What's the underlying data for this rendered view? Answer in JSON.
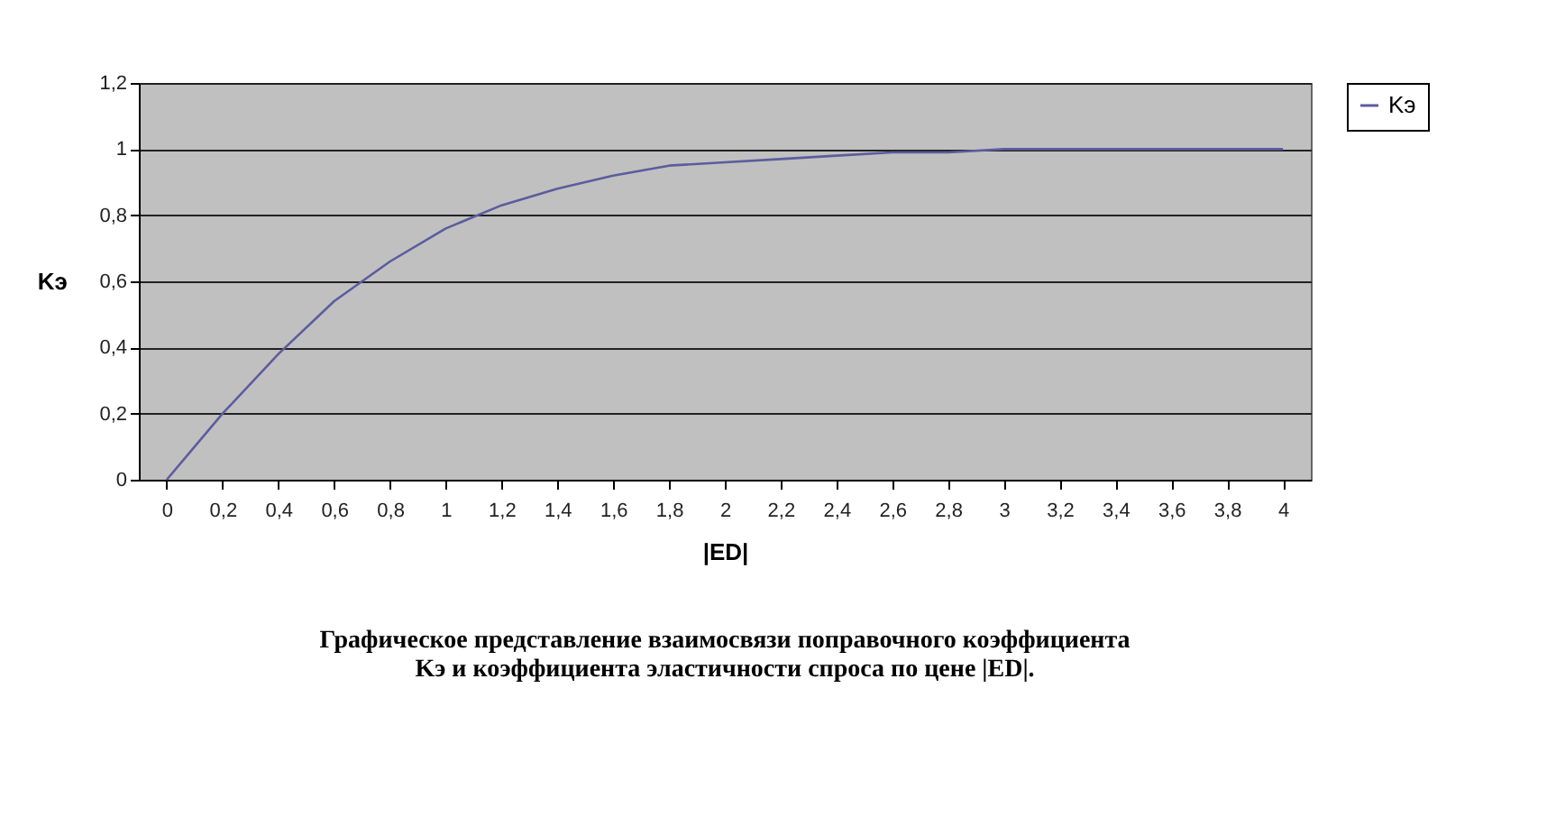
{
  "chart_data": {
    "type": "line",
    "title": "Графическое представление взаимосвязи поправочного коэффициента Kэ и коэффициента эластичности спроса по цене |ED|.",
    "xlabel": "|ED|",
    "ylabel": "Kэ",
    "categories": [
      "0",
      "0,2",
      "0,4",
      "0,6",
      "0,8",
      "1",
      "1,2",
      "1,4",
      "1,6",
      "1,8",
      "2",
      "2,2",
      "2,4",
      "2,6",
      "2,8",
      "3",
      "3,2",
      "3,4",
      "3,6",
      "3,8",
      "4"
    ],
    "series": [
      {
        "name": "Kэ",
        "color": "#5c5c9e",
        "values": [
          0,
          0.2,
          0.38,
          0.54,
          0.66,
          0.76,
          0.83,
          0.88,
          0.92,
          0.95,
          0.96,
          0.97,
          0.98,
          0.99,
          0.99,
          1,
          1,
          1,
          1,
          1,
          1
        ]
      }
    ],
    "ylim": [
      0,
      1.2
    ],
    "yticks": [
      0,
      {
        "value": 0.2,
        "label": "0,2"
      },
      {
        "value": 0.4,
        "label": "0,4"
      },
      {
        "value": 0.6,
        "label": "0,6"
      },
      {
        "value": 0.8,
        "label": "0,8"
      },
      1,
      {
        "value": 1.2,
        "label": "1,2"
      }
    ],
    "grid": "y",
    "legend": "right",
    "marker": "none",
    "line_style": "solid"
  }
}
